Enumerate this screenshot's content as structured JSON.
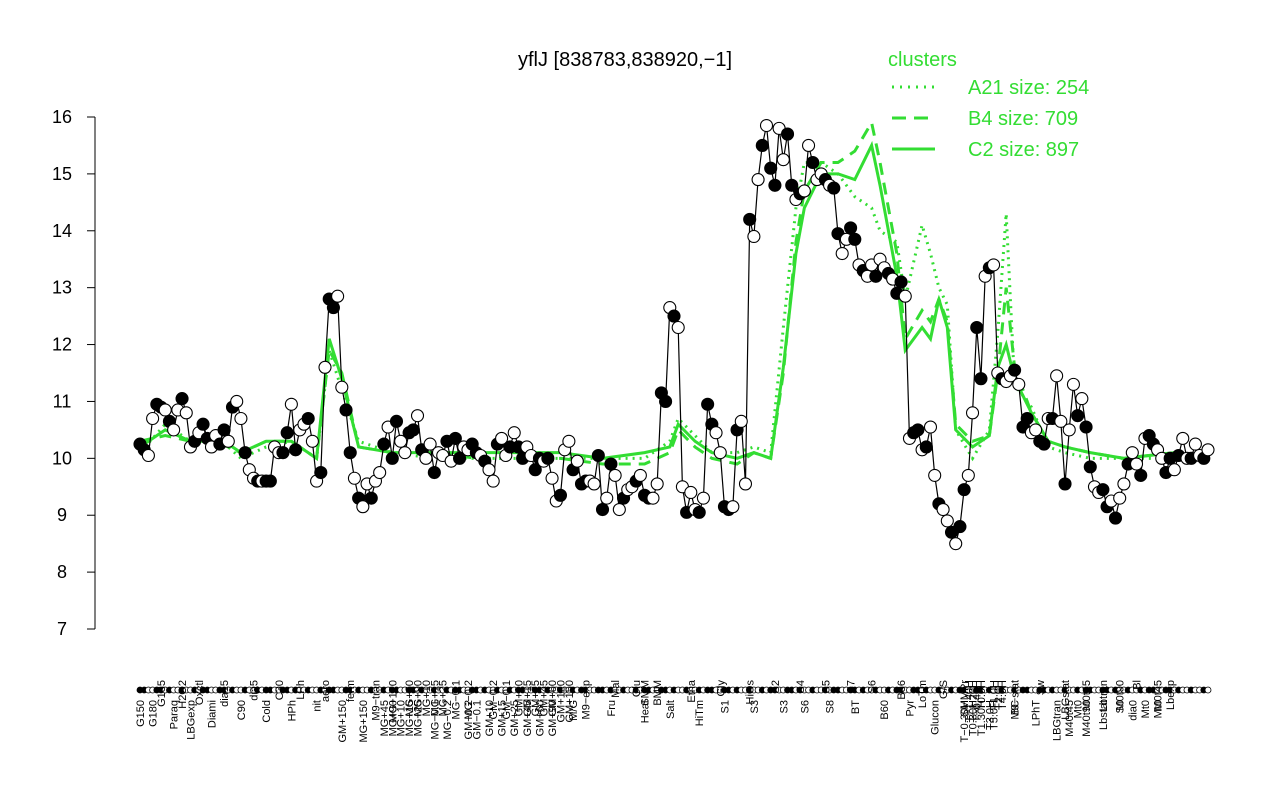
{
  "chart_data": {
    "type": "line",
    "title": "yflJ [838783,838920,−1]",
    "xlabel": "",
    "ylabel": "",
    "ylim": [
      7,
      16
    ],
    "yticks": [
      7,
      8,
      9,
      10,
      11,
      12,
      13,
      14,
      15,
      16
    ],
    "grid": false,
    "legend": {
      "title": "clusters",
      "placement": "top-right",
      "color": "#33dd33",
      "entries": [
        {
          "label": "A21 size: 254",
          "style": "dotted"
        },
        {
          "label": "B4 size: 709",
          "style": "dashed"
        },
        {
          "label": "C2 size: 897",
          "style": "solid"
        }
      ]
    },
    "colors": {
      "series": "#000000",
      "clusters": "#33dd33"
    },
    "x_tick_labels_top": [
      {
        "label": "G135",
        "i": 5
      },
      {
        "label": "H2O2",
        "i": 10
      },
      {
        "label": "Oxctl",
        "i": 14
      },
      {
        "label": "dia15",
        "i": 20
      },
      {
        "label": "dia5",
        "i": 27
      },
      {
        "label": "C30",
        "i": 33
      },
      {
        "label": "LPh",
        "i": 38
      },
      {
        "label": "aero",
        "i": 44
      },
      {
        "label": "ferm",
        "i": 50
      },
      {
        "label": "M9−tran",
        "i": 56
      },
      {
        "label": "MG+120",
        "i": 60
      },
      {
        "label": "MG+60",
        "i": 64
      },
      {
        "label": "MG+90",
        "i": 66
      },
      {
        "label": "MG+10",
        "i": 68
      },
      {
        "label": "MG+15",
        "i": 70
      },
      {
        "label": "MG+25",
        "i": 72
      },
      {
        "label": "MG−0.1",
        "i": 75
      },
      {
        "label": "MG−0.2",
        "i": 78
      },
      {
        "label": "GM−0.2",
        "i": 84
      },
      {
        "label": "GM−0.1",
        "i": 87
      },
      {
        "label": "GM+10",
        "i": 90
      },
      {
        "label": "GM+15",
        "i": 92
      },
      {
        "label": "GM+25",
        "i": 94
      },
      {
        "label": "GM+45",
        "i": 96
      },
      {
        "label": "GM+60",
        "i": 98
      },
      {
        "label": "GM+120",
        "i": 100
      },
      {
        "label": "GM+150",
        "i": 102
      },
      {
        "label": "M9−exp",
        "i": 106
      },
      {
        "label": "Mal",
        "i": 113
      },
      {
        "label": "Glu",
        "i": 118
      },
      {
        "label": "SMM",
        "i": 120
      },
      {
        "label": "BMM",
        "i": 123
      },
      {
        "label": "Etha",
        "i": 131
      },
      {
        "label": "Gly",
        "i": 138
      },
      {
        "label": "HiOs",
        "i": 145
      },
      {
        "label": "S2",
        "i": 151
      },
      {
        "label": "S4",
        "i": 157
      },
      {
        "label": "S5",
        "i": 163
      },
      {
        "label": "S7",
        "i": 169
      },
      {
        "label": "S6",
        "i": 174
      },
      {
        "label": "B36",
        "i": 181
      },
      {
        "label": "LoTm",
        "i": 186
      },
      {
        "label": "G/S",
        "i": 191
      },
      {
        "label": "SMMPr",
        "i": 196
      },
      {
        "label": "T−1.40H",
        "i": 197
      },
      {
        "label": "T−1.20H",
        "i": 198
      },
      {
        "label": "T−0.40H",
        "i": 199
      },
      {
        "label": "T0.0H",
        "i": 200
      },
      {
        "label": "T1.0H",
        "i": 203
      },
      {
        "label": "T2.0H",
        "i": 204
      },
      {
        "label": "T4.0H",
        "i": 205
      },
      {
        "label": "M9−stat",
        "i": 208
      },
      {
        "label": "Sw",
        "i": 214
      },
      {
        "label": "LBGstat",
        "i": 220
      },
      {
        "label": "M0t45",
        "i": 225
      },
      {
        "label": "Lbtran",
        "i": 229
      },
      {
        "label": "M0t90",
        "i": 233
      },
      {
        "label": "Bl",
        "i": 237
      },
      {
        "label": "M0t45",
        "i": 242
      },
      {
        "label": "Lbexp",
        "i": 245
      }
    ],
    "x_tick_labels_bottom": [
      {
        "label": "G150",
        "i": 0
      },
      {
        "label": "G180",
        "i": 3
      },
      {
        "label": "Paraq",
        "i": 8
      },
      {
        "label": "LBGexp",
        "i": 12
      },
      {
        "label": "Diami",
        "i": 17
      },
      {
        "label": "C90",
        "i": 24
      },
      {
        "label": "Cold",
        "i": 30
      },
      {
        "label": "HPh",
        "i": 36
      },
      {
        "label": "nit",
        "i": 42
      },
      {
        "label": "GM+150",
        "i": 48
      },
      {
        "label": "MG+150",
        "i": 53
      },
      {
        "label": "MG+45",
        "i": 58
      },
      {
        "label": "MG+90",
        "i": 60
      },
      {
        "label": "MG+10",
        "i": 62
      },
      {
        "label": "MG+15",
        "i": 64
      },
      {
        "label": "MG+25",
        "i": 66
      },
      {
        "label": "MG−0.1",
        "i": 70
      },
      {
        "label": "MG−0.2",
        "i": 73
      },
      {
        "label": "GM−0.2",
        "i": 78
      },
      {
        "label": "GM−0.1",
        "i": 80
      },
      {
        "label": "GM+10",
        "i": 83
      },
      {
        "label": "GM+15",
        "i": 86
      },
      {
        "label": "GM+25",
        "i": 89
      },
      {
        "label": "GM+45",
        "i": 92
      },
      {
        "label": "GM+60",
        "i": 95
      },
      {
        "label": "GM+90",
        "i": 98
      },
      {
        "label": "M/G",
        "i": 103
      },
      {
        "label": "Fru",
        "i": 112
      },
      {
        "label": "Heat",
        "i": 120
      },
      {
        "label": "Salt",
        "i": 126
      },
      {
        "label": "HiTm",
        "i": 133
      },
      {
        "label": "S1",
        "i": 139
      },
      {
        "label": "S3",
        "i": 146
      },
      {
        "label": "S3",
        "i": 153
      },
      {
        "label": "S6",
        "i": 158
      },
      {
        "label": "S8",
        "i": 164
      },
      {
        "label": "BT",
        "i": 170
      },
      {
        "label": "B60",
        "i": 177
      },
      {
        "label": "Pyr",
        "i": 183
      },
      {
        "label": "Glucon",
        "i": 189
      },
      {
        "label": "T−0.30H",
        "i": 196
      },
      {
        "label": "T0.30H",
        "i": 198
      },
      {
        "label": "T1.30H",
        "i": 200
      },
      {
        "label": "T3.0H",
        "i": 202
      },
      {
        "label": "T5.0H",
        "i": 203
      },
      {
        "label": "BC",
        "i": 208
      },
      {
        "label": "LPhT",
        "i": 213
      },
      {
        "label": "LBGtran",
        "i": 218
      },
      {
        "label": "M40t45",
        "i": 221
      },
      {
        "label": "Mt0",
        "i": 223
      },
      {
        "label": "M40t90",
        "i": 225
      },
      {
        "label": "Lbstat",
        "i": 229
      },
      {
        "label": "S0",
        "i": 233
      },
      {
        "label": "dia0",
        "i": 236
      },
      {
        "label": "Mt0",
        "i": 239
      },
      {
        "label": "Mt0",
        "i": 242
      }
    ],
    "series_values": [
      10.25,
      10.15,
      10.05,
      10.7,
      10.95,
      10.9,
      10.85,
      10.65,
      10.5,
      10.85,
      11.05,
      10.8,
      10.2,
      10.3,
      10.45,
      10.6,
      10.35,
      10.2,
      10.4,
      10.25,
      10.5,
      10.3,
      10.9,
      11.0,
      10.7,
      10.1,
      9.8,
      9.65,
      9.6,
      9.6,
      9.6,
      9.6,
      10.2,
      10.1,
      10.1,
      10.45,
      10.95,
      10.15,
      10.5,
      10.6,
      10.7,
      10.3,
      9.6,
      9.75,
      11.6,
      12.8,
      12.65,
      12.85,
      11.25,
      10.85,
      10.1,
      9.65,
      9.3,
      9.15,
      9.55,
      9.3,
      9.6,
      9.75,
      10.25,
      10.55,
      10.0,
      10.65,
      10.3,
      10.1,
      10.45,
      10.5,
      10.75,
      10.15,
      10.0,
      10.25,
      9.75,
      10.1,
      10.05,
      10.3,
      9.95,
      10.35,
      10.0,
      10.2,
      10.15,
      10.25,
      10.1,
      10.05,
      9.95,
      9.8,
      9.6,
      10.25,
      10.35,
      10.05,
      10.2,
      10.45,
      10.2,
      10.0,
      10.2,
      10.05,
      9.8,
      10.0,
      9.95,
      10.0,
      9.65,
      9.25,
      9.35,
      10.15,
      10.3,
      9.8,
      9.95,
      9.55,
      9.6,
      9.6,
      9.55,
      10.05,
      9.1,
      9.3,
      9.9,
      9.7,
      9.1,
      9.3,
      9.45,
      9.5,
      9.6,
      9.7,
      9.35,
      9.3,
      9.3,
      9.55,
      11.15,
      11.0,
      12.65,
      12.5,
      12.3,
      9.5,
      9.05,
      9.4,
      9.1,
      9.05,
      9.3,
      10.95,
      10.6,
      10.45,
      10.1,
      9.15,
      9.1,
      9.15,
      10.5,
      10.65,
      9.55,
      14.2,
      13.9,
      14.9,
      15.5,
      15.85,
      15.1,
      14.8,
      15.8,
      15.25,
      15.7,
      14.8,
      14.55,
      14.65,
      14.7,
      15.5,
      15.2,
      14.9,
      15.0,
      14.9,
      14.8,
      14.75,
      13.95,
      13.6,
      13.85,
      14.05,
      13.85,
      13.4,
      13.3,
      13.2,
      13.4,
      13.2,
      13.5,
      13.35,
      13.25,
      13.15,
      12.9,
      13.1,
      12.85,
      10.35,
      10.45,
      10.5,
      10.15,
      10.2,
      10.55,
      9.7,
      9.2,
      9.1,
      8.9,
      8.7,
      8.5,
      8.8,
      9.45,
      9.7,
      10.8,
      12.3,
      11.4,
      13.2,
      13.35,
      13.4,
      11.5,
      11.4,
      11.35,
      11.45,
      11.55,
      11.3,
      10.55,
      10.7,
      10.45,
      10.5,
      10.3,
      10.25,
      10.7,
      10.7,
      11.45,
      10.65,
      9.55,
      10.5,
      11.3,
      10.75,
      11.05,
      10.55,
      9.85,
      9.5,
      9.4,
      9.45,
      9.15,
      9.25,
      8.95,
      9.3,
      9.55,
      9.9,
      10.1,
      9.9,
      9.7,
      10.35,
      10.4,
      10.25,
      10.15,
      10.0,
      9.75,
      10.0,
      9.8,
      10.05,
      10.35,
      10.0,
      10.0,
      10.25,
      10.05,
      10.0,
      10.15
    ],
    "cluster_A21_values": [
      [
        0,
        10.1
      ],
      [
        6,
        10.6
      ],
      [
        12,
        10.3
      ],
      [
        18,
        10.4
      ],
      [
        24,
        10.0
      ],
      [
        30,
        10.2
      ],
      [
        36,
        10.3
      ],
      [
        42,
        10.0
      ],
      [
        45,
        11.9
      ],
      [
        48,
        11.2
      ],
      [
        52,
        10.3
      ],
      [
        60,
        10.1
      ],
      [
        70,
        10.0
      ],
      [
        80,
        10.0
      ],
      [
        90,
        10.0
      ],
      [
        100,
        10.0
      ],
      [
        110,
        10.0
      ],
      [
        120,
        10.0
      ],
      [
        126,
        10.3
      ],
      [
        128,
        10.7
      ],
      [
        132,
        10.4
      ],
      [
        136,
        10.1
      ],
      [
        142,
        10.1
      ],
      [
        146,
        10.2
      ],
      [
        150,
        10.1
      ],
      [
        153,
        12.3
      ],
      [
        156,
        14.4
      ],
      [
        158,
        15.2
      ],
      [
        162,
        15.2
      ],
      [
        166,
        15.0
      ],
      [
        170,
        14.6
      ],
      [
        174,
        14.4
      ],
      [
        176,
        14.0
      ],
      [
        180,
        13.8
      ],
      [
        182,
        12.8
      ],
      [
        186,
        14.1
      ],
      [
        188,
        13.6
      ],
      [
        190,
        13.0
      ],
      [
        192,
        12.7
      ],
      [
        194,
        10.5
      ],
      [
        198,
        10.0
      ],
      [
        202,
        10.5
      ],
      [
        204,
        12.2
      ],
      [
        206,
        14.3
      ],
      [
        208,
        11.3
      ],
      [
        212,
        10.9
      ],
      [
        216,
        10.2
      ],
      [
        220,
        10.1
      ],
      [
        226,
        10.0
      ],
      [
        234,
        10.0
      ],
      [
        246,
        10.0
      ]
    ],
    "cluster_B4_values": [
      [
        0,
        10.3
      ],
      [
        6,
        10.4
      ],
      [
        12,
        10.3
      ],
      [
        18,
        10.3
      ],
      [
        24,
        10.1
      ],
      [
        30,
        10.3
      ],
      [
        36,
        10.3
      ],
      [
        42,
        10.0
      ],
      [
        45,
        11.9
      ],
      [
        48,
        11.5
      ],
      [
        52,
        10.2
      ],
      [
        60,
        10.1
      ],
      [
        70,
        10.1
      ],
      [
        80,
        10.0
      ],
      [
        90,
        10.0
      ],
      [
        100,
        10.0
      ],
      [
        110,
        9.9
      ],
      [
        120,
        9.9
      ],
      [
        126,
        10.1
      ],
      [
        128,
        10.5
      ],
      [
        132,
        10.2
      ],
      [
        136,
        10.0
      ],
      [
        142,
        9.9
      ],
      [
        146,
        10.1
      ],
      [
        150,
        10.0
      ],
      [
        153,
        11.5
      ],
      [
        156,
        13.8
      ],
      [
        158,
        14.7
      ],
      [
        162,
        15.2
      ],
      [
        166,
        15.2
      ],
      [
        170,
        15.4
      ],
      [
        174,
        15.9
      ],
      [
        176,
        15.2
      ],
      [
        180,
        13.6
      ],
      [
        182,
        12.1
      ],
      [
        186,
        12.6
      ],
      [
        188,
        12.4
      ],
      [
        190,
        12.8
      ],
      [
        192,
        12.4
      ],
      [
        194,
        10.6
      ],
      [
        198,
        10.3
      ],
      [
        202,
        10.4
      ],
      [
        204,
        11.5
      ],
      [
        206,
        13.0
      ],
      [
        208,
        11.6
      ],
      [
        212,
        10.8
      ],
      [
        216,
        10.3
      ],
      [
        220,
        10.2
      ],
      [
        226,
        10.1
      ],
      [
        234,
        10.0
      ],
      [
        246,
        10.1
      ]
    ],
    "cluster_C2_values": [
      [
        0,
        10.2
      ],
      [
        6,
        10.5
      ],
      [
        12,
        10.3
      ],
      [
        18,
        10.4
      ],
      [
        24,
        10.1
      ],
      [
        30,
        10.3
      ],
      [
        36,
        10.3
      ],
      [
        42,
        10.0
      ],
      [
        45,
        12.1
      ],
      [
        48,
        11.4
      ],
      [
        52,
        10.2
      ],
      [
        60,
        10.1
      ],
      [
        70,
        10.1
      ],
      [
        80,
        10.1
      ],
      [
        90,
        10.1
      ],
      [
        100,
        10.1
      ],
      [
        110,
        10.0
      ],
      [
        120,
        10.1
      ],
      [
        126,
        10.2
      ],
      [
        128,
        10.6
      ],
      [
        132,
        10.3
      ],
      [
        136,
        10.1
      ],
      [
        142,
        10.0
      ],
      [
        146,
        10.1
      ],
      [
        150,
        10.0
      ],
      [
        153,
        11.6
      ],
      [
        156,
        13.6
      ],
      [
        158,
        14.4
      ],
      [
        162,
        15.0
      ],
      [
        166,
        15.0
      ],
      [
        170,
        14.9
      ],
      [
        174,
        15.5
      ],
      [
        176,
        14.8
      ],
      [
        180,
        13.2
      ],
      [
        182,
        11.9
      ],
      [
        186,
        12.3
      ],
      [
        188,
        12.1
      ],
      [
        190,
        12.8
      ],
      [
        192,
        12.3
      ],
      [
        194,
        10.5
      ],
      [
        198,
        10.2
      ],
      [
        202,
        10.4
      ],
      [
        204,
        11.6
      ],
      [
        206,
        12.0
      ],
      [
        208,
        11.4
      ],
      [
        212,
        10.8
      ],
      [
        216,
        10.3
      ],
      [
        220,
        10.2
      ],
      [
        226,
        10.1
      ],
      [
        234,
        10.0
      ],
      [
        246,
        10.1
      ]
    ]
  }
}
